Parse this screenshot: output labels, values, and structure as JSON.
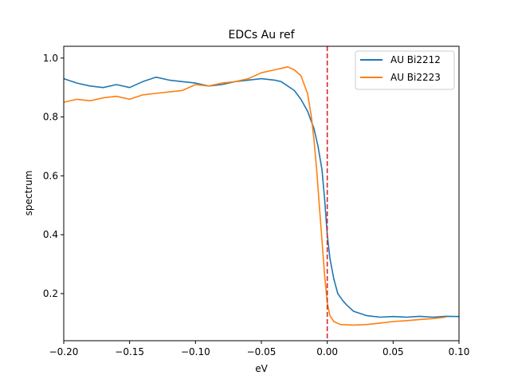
{
  "chart_data": {
    "type": "line",
    "title": "EDCs Au ref",
    "xlabel": "eV",
    "ylabel": "spectrum",
    "xlim": [
      -0.2,
      0.1
    ],
    "ylim": [
      0.04,
      1.04
    ],
    "xticks": [
      -0.2,
      -0.15,
      -0.1,
      -0.05,
      0.0,
      0.05,
      0.1
    ],
    "xtick_labels": [
      "−0.20",
      "−0.15",
      "−0.10",
      "−0.05",
      "0.00",
      "0.05",
      "0.10"
    ],
    "yticks": [
      0.2,
      0.4,
      0.6,
      0.8,
      1.0
    ],
    "ytick_labels": [
      "0.2",
      "0.4",
      "0.6",
      "0.8",
      "1.0"
    ],
    "grid": false,
    "legend_position": "top-right",
    "vline": {
      "x": 0.0,
      "color": "#d62728",
      "style": "dashed"
    },
    "series": [
      {
        "name": "AU Bi2212",
        "color": "#1f77b4",
        "x": [
          -0.2,
          -0.19,
          -0.18,
          -0.17,
          -0.16,
          -0.15,
          -0.14,
          -0.13,
          -0.12,
          -0.11,
          -0.1,
          -0.09,
          -0.08,
          -0.07,
          -0.06,
          -0.05,
          -0.04,
          -0.035,
          -0.03,
          -0.025,
          -0.02,
          -0.015,
          -0.01,
          -0.007,
          -0.004,
          -0.002,
          0.0,
          0.002,
          0.005,
          0.008,
          0.012,
          0.015,
          0.02,
          0.03,
          0.04,
          0.05,
          0.06,
          0.07,
          0.08,
          0.09,
          0.1
        ],
        "y": [
          0.93,
          0.915,
          0.905,
          0.9,
          0.91,
          0.9,
          0.92,
          0.935,
          0.925,
          0.92,
          0.915,
          0.905,
          0.91,
          0.92,
          0.925,
          0.93,
          0.925,
          0.92,
          0.905,
          0.89,
          0.86,
          0.82,
          0.76,
          0.7,
          0.62,
          0.52,
          0.4,
          0.32,
          0.25,
          0.2,
          0.175,
          0.16,
          0.14,
          0.125,
          0.12,
          0.122,
          0.12,
          0.123,
          0.12,
          0.123,
          0.122
        ]
      },
      {
        "name": "AU Bi2223",
        "color": "#ff7f0e",
        "x": [
          -0.2,
          -0.19,
          -0.18,
          -0.17,
          -0.16,
          -0.15,
          -0.14,
          -0.13,
          -0.12,
          -0.11,
          -0.1,
          -0.09,
          -0.08,
          -0.07,
          -0.06,
          -0.05,
          -0.04,
          -0.035,
          -0.03,
          -0.025,
          -0.02,
          -0.015,
          -0.012,
          -0.01,
          -0.008,
          -0.006,
          -0.004,
          -0.002,
          0.0,
          0.002,
          0.005,
          0.01,
          0.02,
          0.03,
          0.04,
          0.05,
          0.06,
          0.07,
          0.08,
          0.09
        ],
        "y": [
          0.85,
          0.86,
          0.855,
          0.865,
          0.87,
          0.86,
          0.875,
          0.88,
          0.885,
          0.89,
          0.91,
          0.905,
          0.915,
          0.92,
          0.93,
          0.95,
          0.96,
          0.965,
          0.97,
          0.96,
          0.94,
          0.88,
          0.8,
          0.72,
          0.62,
          0.5,
          0.38,
          0.26,
          0.17,
          0.125,
          0.105,
          0.095,
          0.093,
          0.095,
          0.1,
          0.105,
          0.108,
          0.112,
          0.115,
          0.12
        ]
      }
    ]
  }
}
